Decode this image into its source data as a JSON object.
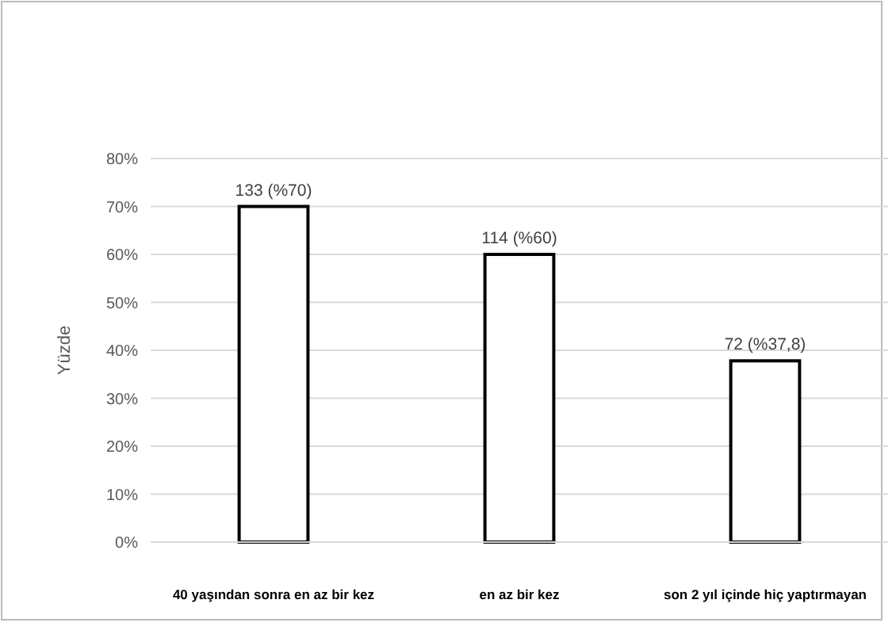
{
  "chart_data": {
    "type": "bar",
    "ylabel": "Yüzde",
    "categories": [
      "40 yaşından sonra en az bir kez",
      "en az bir kez",
      "son 2 yıl içinde hiç yaptırmayan"
    ],
    "values": [
      70,
      60,
      37.8
    ],
    "value_labels": [
      "133 (%70)",
      "114 (%60)",
      "72 (%37,8)"
    ],
    "color": "#ffffff",
    "ylim": [
      0,
      80
    ],
    "yticks": [
      {
        "value": 0,
        "label": "0%"
      },
      {
        "value": 10,
        "label": "10%"
      },
      {
        "value": 20,
        "label": "20%"
      },
      {
        "value": 30,
        "label": "30%"
      },
      {
        "value": 40,
        "label": "40%"
      },
      {
        "value": 50,
        "label": "50%"
      },
      {
        "value": 60,
        "label": "60%"
      },
      {
        "value": 70,
        "label": "70%"
      },
      {
        "value": 80,
        "label": "80%"
      }
    ],
    "grid": "y"
  }
}
